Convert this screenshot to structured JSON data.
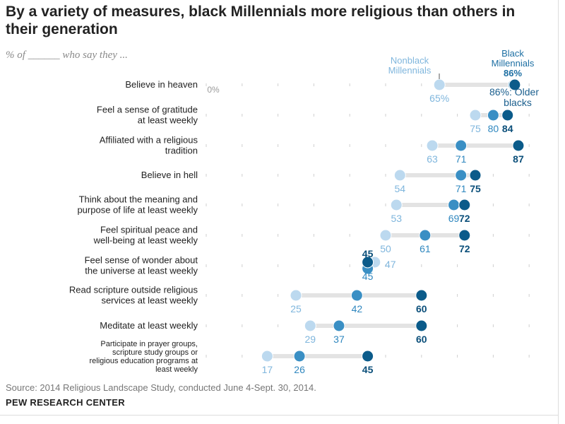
{
  "title": "By a variety of measures, black Millennials more religious than others in their generation",
  "subtitle": "% of ______ who say they ...",
  "source": "Source: 2014 Religious Landscape Study, conducted June 4-Sept. 30, 2014.",
  "org": "PEW RESEARCH CENTER",
  "colors": {
    "nonblack_millennials": "#bcd9ef",
    "older_blacks": "#3a8fc4",
    "black_millennials": "#0b5b8a",
    "track": "#e3e3e3",
    "tick": "#cfcfcf"
  },
  "chart_data": {
    "type": "dot",
    "xlim": [
      0,
      100
    ],
    "x_tick_label": "0%",
    "legend": {
      "nonblack": "Nonblack Millennials",
      "black": "Black Millennials",
      "black_value": "86%",
      "older": "86%: Older blacks"
    },
    "categories": [
      "Believe in heaven",
      "Feel a sense of gratitude at least weekly",
      "Affiliated with a religious tradition",
      "Believe in hell",
      "Think about the meaning and purpose of life at least weekly",
      "Feel spiritual peace and well-being at least weekly",
      "Feel sense of wonder about the universe at least weekly",
      "Read scripture outside religious services at least weekly",
      "Meditate at least weekly",
      "Participate in prayer groups, scripture study groups or religious education programs at least weekly"
    ],
    "series": [
      {
        "name": "Nonblack Millennials",
        "values": [
          65,
          75,
          63,
          54,
          53,
          50,
          47,
          25,
          29,
          17
        ]
      },
      {
        "name": "Older blacks",
        "values": [
          86,
          80,
          71,
          71,
          69,
          61,
          45,
          42,
          37,
          26
        ]
      },
      {
        "name": "Black Millennials",
        "values": [
          86,
          84,
          87,
          75,
          72,
          72,
          45,
          60,
          60,
          45
        ]
      }
    ],
    "value_labels": [
      [
        "65%",
        "",
        ""
      ],
      [
        "75",
        "80",
        "84"
      ],
      [
        "63",
        "71",
        "87"
      ],
      [
        "54",
        "71",
        "75"
      ],
      [
        "53",
        "69",
        "72"
      ],
      [
        "50",
        "61",
        "72"
      ],
      [
        "47",
        "45",
        "45"
      ],
      [
        "25",
        "42",
        "60"
      ],
      [
        "29",
        "37",
        "60"
      ],
      [
        "17",
        "26",
        "45"
      ]
    ]
  }
}
